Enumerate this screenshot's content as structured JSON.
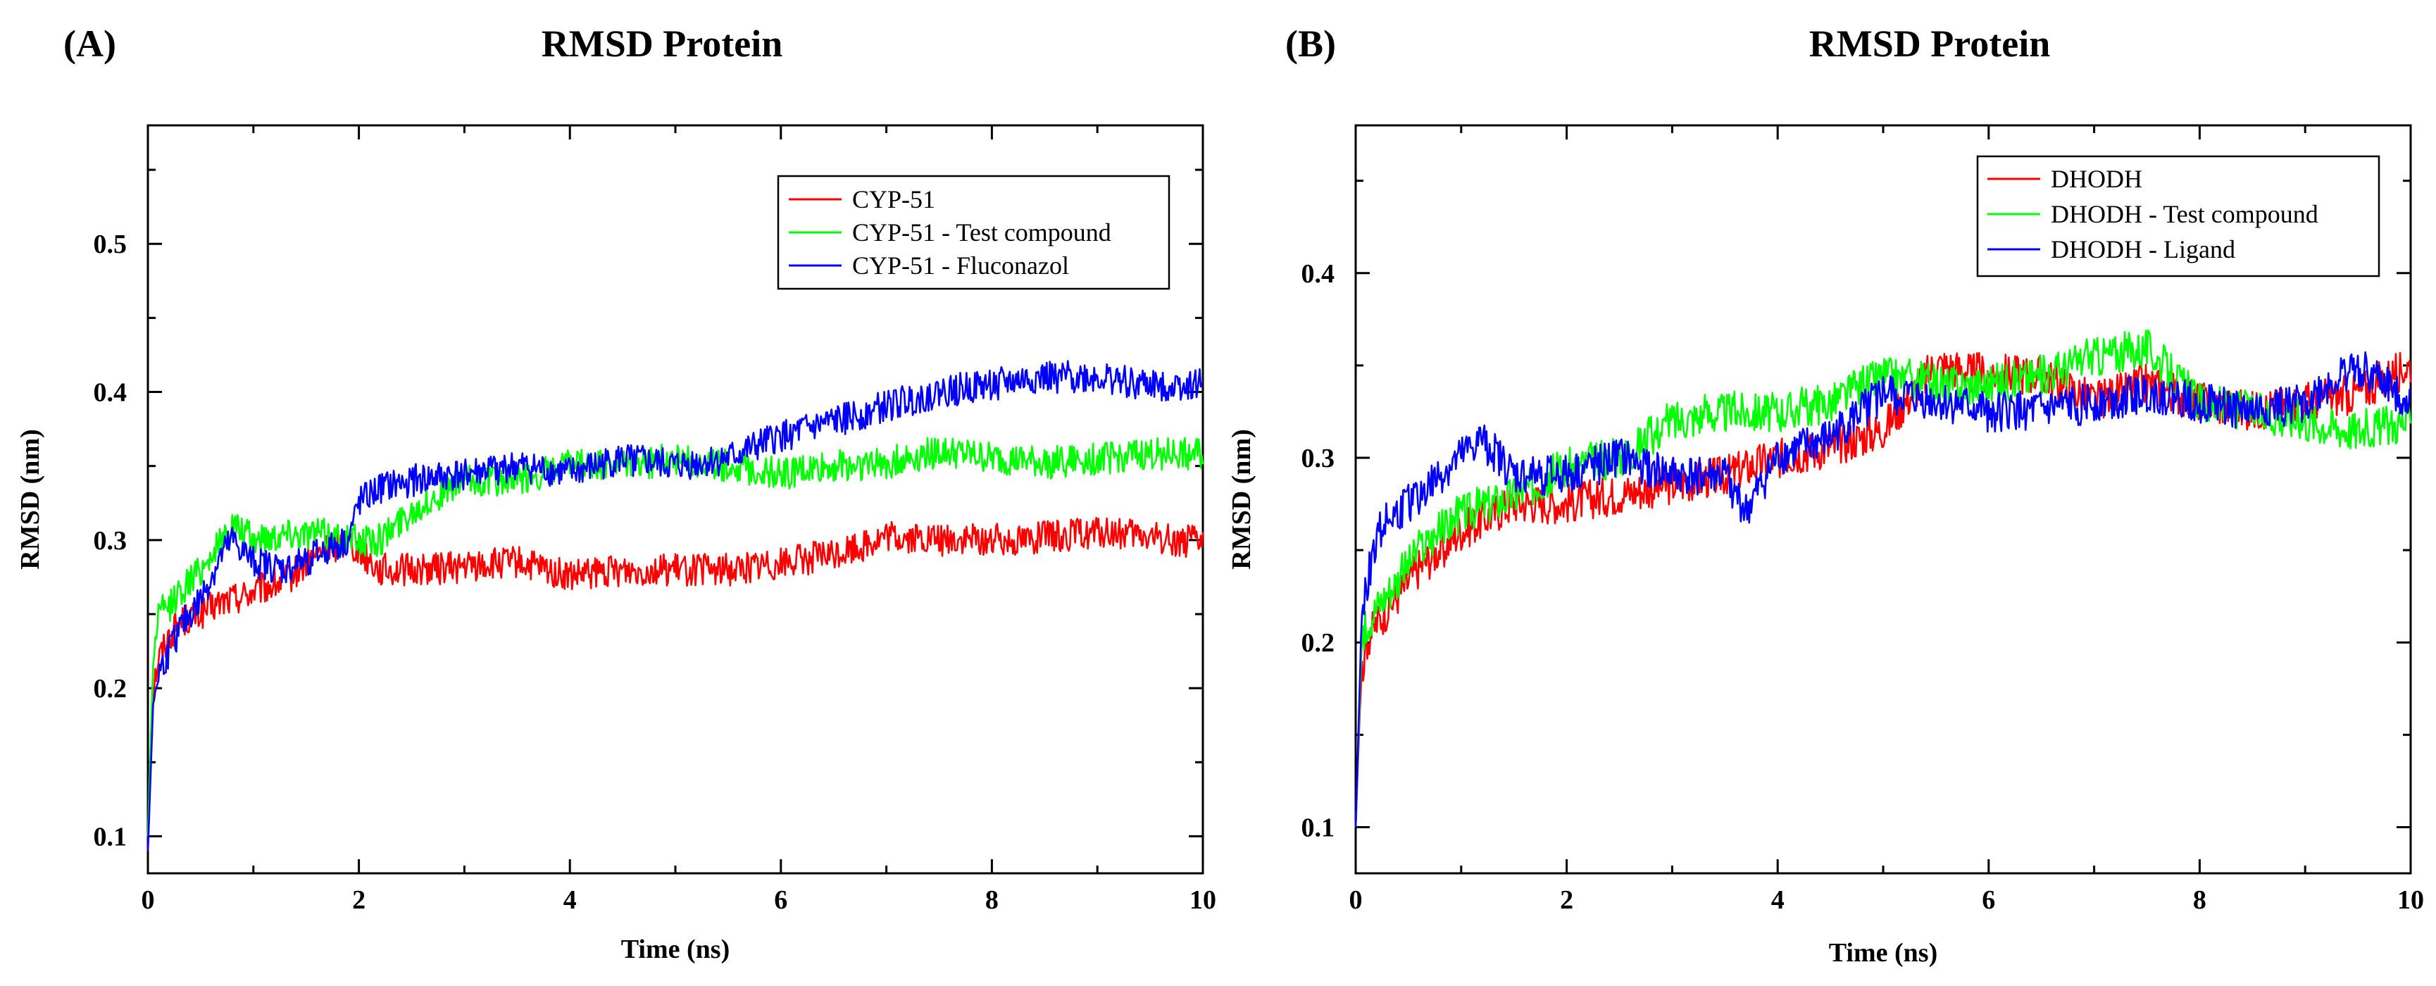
{
  "chart_data": [
    {
      "panel": "(A)",
      "type": "line",
      "title": "RMSD Protein",
      "xlabel": "Time (ns)",
      "ylabel": "RMSD (nm)",
      "xlim": [
        0,
        10
      ],
      "ylim": [
        0.075,
        0.58
      ],
      "xticks": [
        0,
        2,
        4,
        6,
        8,
        10
      ],
      "yticks": [
        0.1,
        0.2,
        0.3,
        0.4,
        0.5
      ],
      "xtick_labels": [
        "0",
        "2",
        "4",
        "6",
        "8",
        "10"
      ],
      "ytick_labels": [
        "0.1",
        "0.2",
        "0.3",
        "0.4",
        "0.5"
      ],
      "legend_position": "top-right",
      "series": [
        {
          "name": "CYP-51",
          "color": "#ff0000",
          "x": [
            0,
            0.05,
            0.1,
            0.2,
            0.3,
            0.5,
            0.7,
            1.0,
            1.3,
            1.6,
            1.9,
            2.2,
            2.5,
            3.0,
            3.5,
            4.0,
            4.5,
            5.0,
            5.5,
            6.0,
            6.5,
            7.0,
            7.5,
            8.0,
            8.5,
            9.0,
            9.5,
            10.0
          ],
          "y": [
            0.09,
            0.2,
            0.22,
            0.235,
            0.245,
            0.25,
            0.258,
            0.265,
            0.272,
            0.29,
            0.3,
            0.28,
            0.28,
            0.282,
            0.285,
            0.275,
            0.28,
            0.28,
            0.28,
            0.285,
            0.29,
            0.302,
            0.3,
            0.3,
            0.302,
            0.305,
            0.302,
            0.298
          ]
        },
        {
          "name": "CYP-51 - Test compound",
          "color": "#00ff00",
          "x": [
            0,
            0.05,
            0.1,
            0.2,
            0.3,
            0.5,
            0.7,
            0.8,
            1.0,
            1.3,
            1.6,
            1.9,
            2.2,
            2.5,
            3.0,
            3.5,
            4.0,
            4.5,
            5.0,
            5.5,
            6.0,
            6.5,
            7.0,
            7.5,
            8.0,
            8.5,
            9.0,
            9.5,
            10.0
          ],
          "y": [
            0.1,
            0.22,
            0.25,
            0.255,
            0.265,
            0.28,
            0.3,
            0.31,
            0.3,
            0.305,
            0.305,
            0.3,
            0.3,
            0.32,
            0.34,
            0.34,
            0.35,
            0.35,
            0.355,
            0.35,
            0.345,
            0.35,
            0.352,
            0.36,
            0.355,
            0.352,
            0.355,
            0.358,
            0.358
          ]
        },
        {
          "name": "CYP-51 - Fluconazol",
          "color": "#0000ff",
          "x": [
            0,
            0.05,
            0.1,
            0.2,
            0.3,
            0.5,
            0.7,
            0.8,
            1.0,
            1.3,
            1.6,
            1.9,
            2.0,
            2.2,
            2.5,
            3.0,
            3.5,
            4.0,
            4.5,
            5.0,
            5.5,
            6.0,
            6.5,
            7.0,
            7.5,
            8.0,
            8.5,
            9.0,
            9.5,
            10.0
          ],
          "y": [
            0.09,
            0.19,
            0.21,
            0.225,
            0.24,
            0.26,
            0.29,
            0.3,
            0.285,
            0.28,
            0.29,
            0.3,
            0.325,
            0.335,
            0.34,
            0.345,
            0.35,
            0.345,
            0.355,
            0.35,
            0.355,
            0.37,
            0.38,
            0.39,
            0.4,
            0.405,
            0.41,
            0.41,
            0.405,
            0.405
          ]
        }
      ]
    },
    {
      "panel": "(B)",
      "type": "line",
      "title": "RMSD Protein",
      "xlabel": "Time (ns)",
      "ylabel": "RMSD (nm)",
      "xlim": [
        0,
        10
      ],
      "ylim": [
        0.075,
        0.48
      ],
      "xticks": [
        0,
        2,
        4,
        6,
        8,
        10
      ],
      "yticks": [
        0.1,
        0.2,
        0.3,
        0.4
      ],
      "xtick_labels": [
        "0",
        "2",
        "4",
        "6",
        "8",
        "10"
      ],
      "ytick_labels": [
        "0.1",
        "0.2",
        "0.3",
        "0.4"
      ],
      "legend_position": "top-right",
      "series": [
        {
          "name": "DHODH",
          "color": "#ff0000",
          "x": [
            0,
            0.05,
            0.1,
            0.2,
            0.4,
            0.6,
            0.8,
            1.0,
            1.5,
            2.0,
            2.5,
            3.0,
            3.5,
            4.0,
            4.5,
            5.0,
            5.5,
            6.0,
            6.5,
            7.0,
            7.5,
            8.0,
            8.5,
            9.0,
            9.5,
            10.0
          ],
          "y": [
            0.1,
            0.18,
            0.2,
            0.21,
            0.225,
            0.24,
            0.25,
            0.26,
            0.275,
            0.275,
            0.28,
            0.285,
            0.29,
            0.3,
            0.305,
            0.315,
            0.35,
            0.345,
            0.345,
            0.33,
            0.34,
            0.33,
            0.325,
            0.33,
            0.335,
            0.35
          ]
        },
        {
          "name": "DHODH - Test compound",
          "color": "#00ff00",
          "x": [
            0,
            0.05,
            0.1,
            0.2,
            0.4,
            0.6,
            0.8,
            1.0,
            1.5,
            2.0,
            2.5,
            3.0,
            3.5,
            4.0,
            4.5,
            5.0,
            5.5,
            6.0,
            6.5,
            7.0,
            7.5,
            8.0,
            8.5,
            9.0,
            9.5,
            10.0
          ],
          "y": [
            0.1,
            0.19,
            0.21,
            0.22,
            0.235,
            0.25,
            0.26,
            0.27,
            0.28,
            0.295,
            0.3,
            0.32,
            0.325,
            0.325,
            0.33,
            0.345,
            0.34,
            0.34,
            0.345,
            0.355,
            0.36,
            0.33,
            0.325,
            0.32,
            0.315,
            0.32
          ]
        },
        {
          "name": "DHODH - Ligand",
          "color": "#0000ff",
          "x": [
            0,
            0.05,
            0.1,
            0.2,
            0.4,
            0.6,
            0.8,
            1.0,
            1.2,
            1.5,
            2.0,
            2.5,
            3.0,
            3.5,
            3.7,
            4.0,
            4.5,
            5.0,
            5.5,
            6.0,
            6.5,
            7.0,
            7.5,
            8.0,
            8.5,
            9.0,
            9.5,
            10.0
          ],
          "y": [
            0.1,
            0.2,
            0.23,
            0.26,
            0.27,
            0.28,
            0.29,
            0.3,
            0.31,
            0.29,
            0.29,
            0.3,
            0.29,
            0.29,
            0.27,
            0.3,
            0.31,
            0.335,
            0.33,
            0.325,
            0.325,
            0.33,
            0.335,
            0.33,
            0.325,
            0.33,
            0.35,
            0.33
          ]
        }
      ]
    }
  ]
}
